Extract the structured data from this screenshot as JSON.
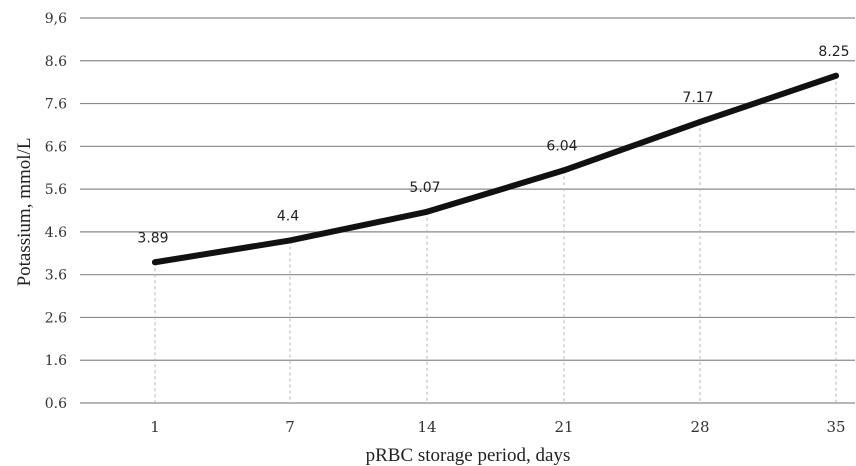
{
  "chart_data": {
    "type": "line",
    "xlabel": "pRBC storage period, days",
    "ylabel": "Potassium, mmol/L",
    "categories": [
      "1",
      "7",
      "14",
      "21",
      "28",
      "35"
    ],
    "y_ticks": [
      "9,6",
      "8.6",
      "7.6",
      "6.6",
      "5.6",
      "4.6",
      "3.6",
      "2.6",
      "1.6",
      "0.6"
    ],
    "ylim": [
      0.6,
      9.6
    ],
    "grid": "horizontal",
    "series": [
      {
        "values": [
          3.89,
          4.4,
          5.07,
          6.04,
          7.17,
          8.25
        ],
        "labels": [
          "3.89",
          "4.4",
          "5.07",
          "6.04",
          "7.17",
          "8.25"
        ],
        "color": "#111111"
      }
    ]
  }
}
